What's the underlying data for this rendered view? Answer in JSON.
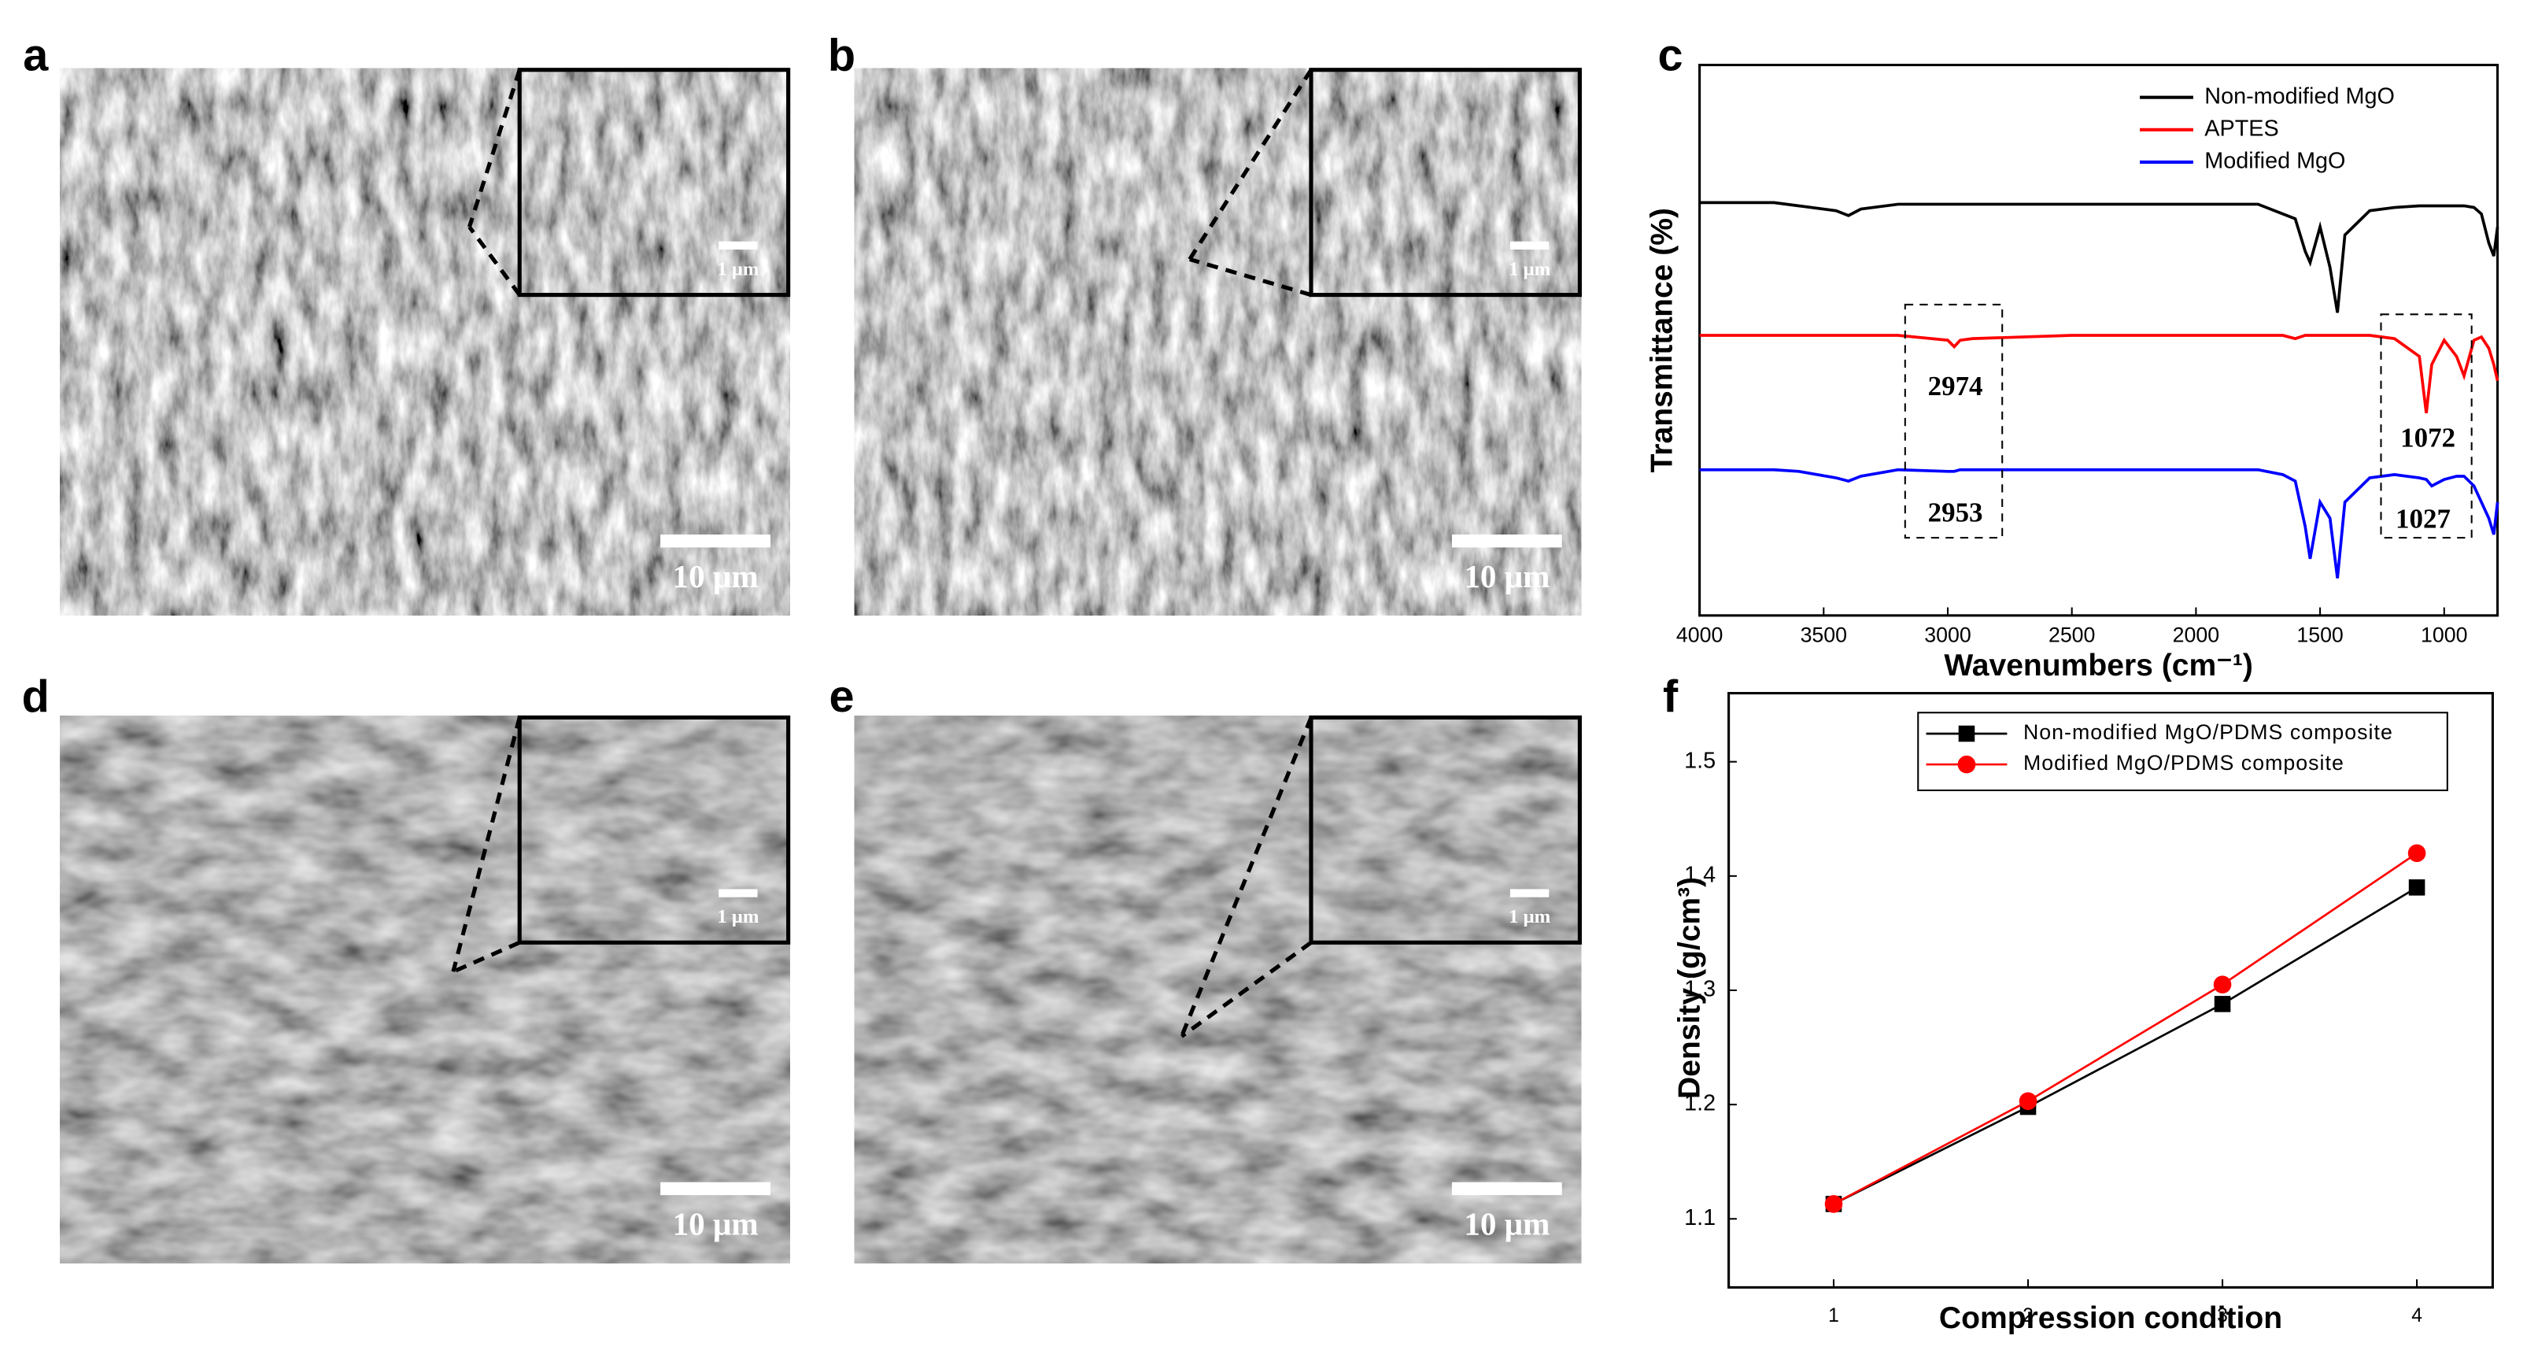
{
  "panels": [
    {
      "label": "a",
      "scale": "10 μm",
      "inset_scale": "1 μm"
    },
    {
      "label": "b",
      "scale": "10 μm",
      "inset_scale": "1 μm"
    },
    {
      "label": "d",
      "scale": "10 μm",
      "inset_scale": "1 μm"
    },
    {
      "label": "e",
      "scale": "10 μm",
      "inset_scale": "1 μm"
    }
  ],
  "chart_data": [
    {
      "type": "line",
      "label": "c",
      "xlabel": "Wavenumbers (cm⁻¹)",
      "ylabel": "Transmittance (%)",
      "xlim": [
        4000,
        785
      ],
      "xticks": [
        4000,
        3500,
        3000,
        2500,
        2000,
        1500,
        1000
      ],
      "ylim": [
        0,
        340
      ],
      "annotations": [
        "2974",
        "1072",
        "2953",
        "1027"
      ],
      "x": [
        4000,
        3700,
        3600,
        3450,
        3400,
        3350,
        3200,
        3000,
        2974,
        2950,
        2900,
        2500,
        2000,
        1750,
        1650,
        1600,
        1560,
        1540,
        1500,
        1460,
        1430,
        1400,
        1300,
        1200,
        1100,
        1072,
        1050,
        1000,
        950,
        920,
        880,
        850,
        820,
        800,
        785
      ],
      "series": [
        {
          "name": "Non-modified MgO",
          "color": "#000000",
          "values": [
            255,
            255,
            253,
            250,
            247,
            251,
            254,
            254,
            254,
            254,
            254,
            254,
            254,
            254,
            248,
            245,
            225,
            218,
            240,
            215,
            187,
            235,
            250,
            252,
            253,
            253,
            253,
            253,
            253,
            253,
            252,
            248,
            230,
            222,
            240
          ]
        },
        {
          "name": "APTES",
          "color": "#ff0000",
          "values": [
            173,
            173,
            173,
            173,
            173,
            173,
            173,
            170,
            166,
            170,
            171,
            173,
            173,
            173,
            173,
            171,
            173,
            173,
            173,
            173,
            173,
            173,
            173,
            171,
            160,
            125,
            155,
            170,
            160,
            148,
            170,
            172,
            165,
            155,
            145
          ]
        },
        {
          "name": "Modified MgO",
          "color": "#0000ff",
          "values": [
            90,
            90,
            89,
            85,
            83,
            86,
            90,
            89,
            89,
            90,
            90,
            90,
            90,
            90,
            87,
            83,
            55,
            35,
            70,
            60,
            23,
            70,
            85,
            87,
            85,
            84,
            80,
            84,
            86,
            86,
            80,
            70,
            60,
            50,
            70
          ]
        }
      ]
    },
    {
      "type": "line",
      "label": "f",
      "xlabel": "Compression condition",
      "ylabel": "Density (g/cm³)",
      "xlim": [
        0.46,
        4.39
      ],
      "xticks": [
        1,
        2,
        3,
        4
      ],
      "ylim": [
        1.04,
        1.56
      ],
      "yticks": [
        1.1,
        1.2,
        1.3,
        1.4,
        1.5
      ],
      "x": [
        1,
        2,
        3,
        4
      ],
      "series": [
        {
          "name": "Non-modified MgO/PDMS composite",
          "color": "#000000",
          "marker": "square",
          "values": [
            1.113,
            1.198,
            1.288,
            1.39
          ]
        },
        {
          "name": "Modified MgO/PDMS composite",
          "color": "#ff0000",
          "marker": "circle",
          "values": [
            1.113,
            1.203,
            1.305,
            1.42
          ]
        }
      ]
    }
  ]
}
